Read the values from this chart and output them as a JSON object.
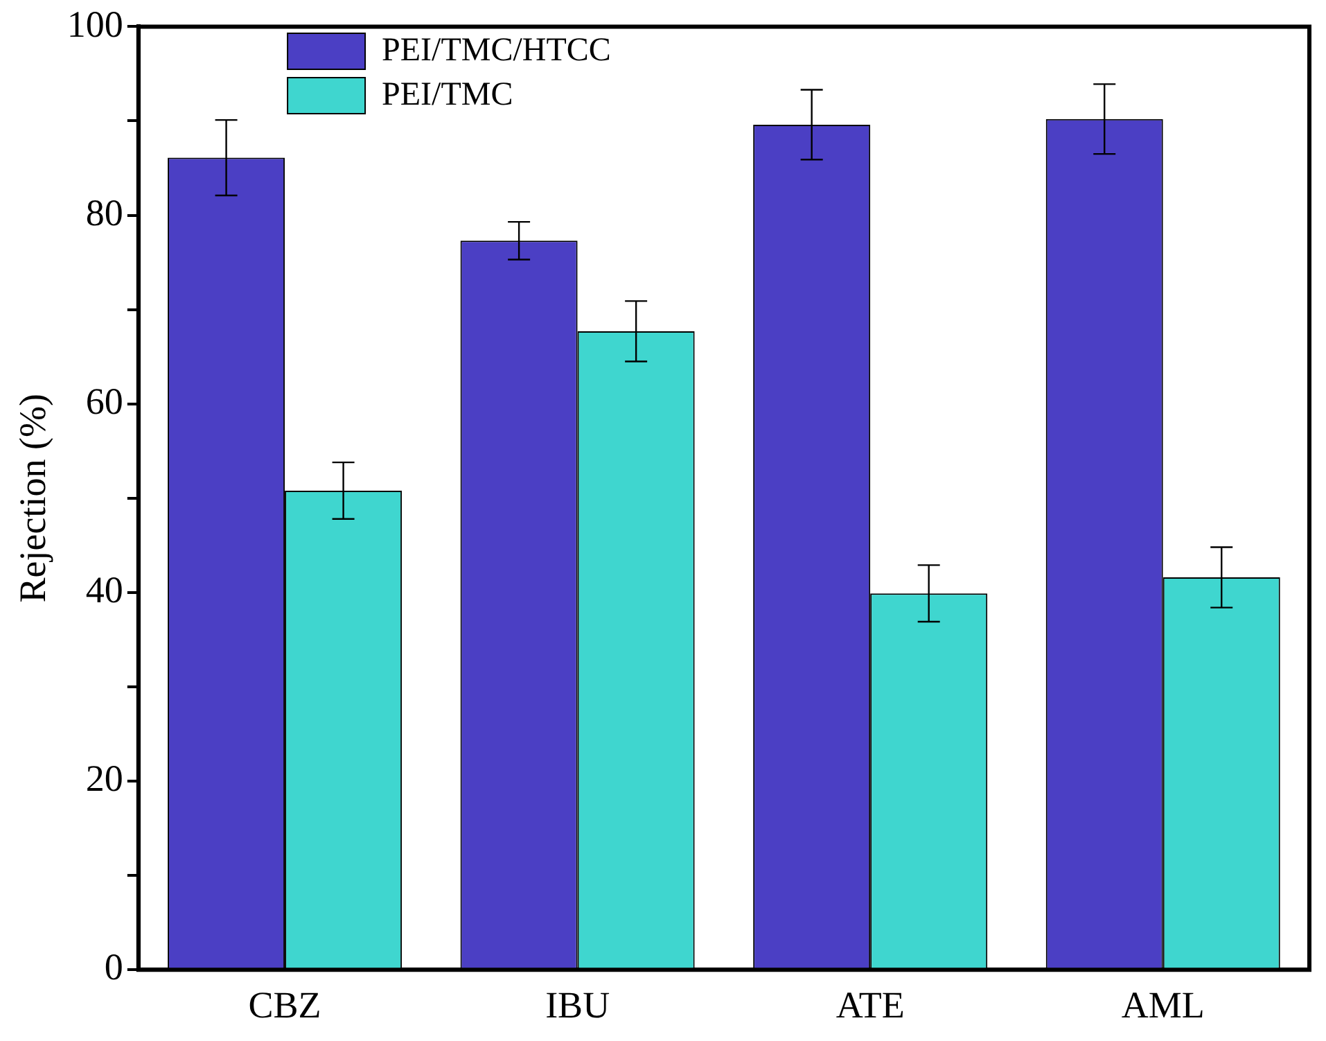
{
  "chart_data": {
    "type": "bar",
    "ylabel": "Rejection (%)",
    "categories": [
      "CBZ",
      "IBU",
      "ATE",
      "AML"
    ],
    "series": [
      {
        "name": "PEI/TMC/HTCC",
        "color": "#4b3fc4",
        "values": [
          86.1,
          77.3,
          89.6,
          90.2
        ],
        "errors": [
          4,
          2,
          3.7,
          3.7
        ]
      },
      {
        "name": "PEI/TMC",
        "color": "#3fd6cf",
        "values": [
          50.8,
          67.7,
          39.9,
          41.6
        ],
        "errors": [
          3,
          3.2,
          3,
          3.2
        ]
      }
    ],
    "ylim": [
      0,
      100
    ],
    "yticks": [
      0,
      {
        "value": 10,
        "label": null
      },
      20,
      {
        "value": 30,
        "label": null
      },
      40,
      {
        "value": 50,
        "label": null
      },
      60,
      {
        "value": 70,
        "label": null
      },
      80,
      {
        "value": 90,
        "label": null
      },
      100
    ],
    "legend": "top left",
    "grid": false
  }
}
